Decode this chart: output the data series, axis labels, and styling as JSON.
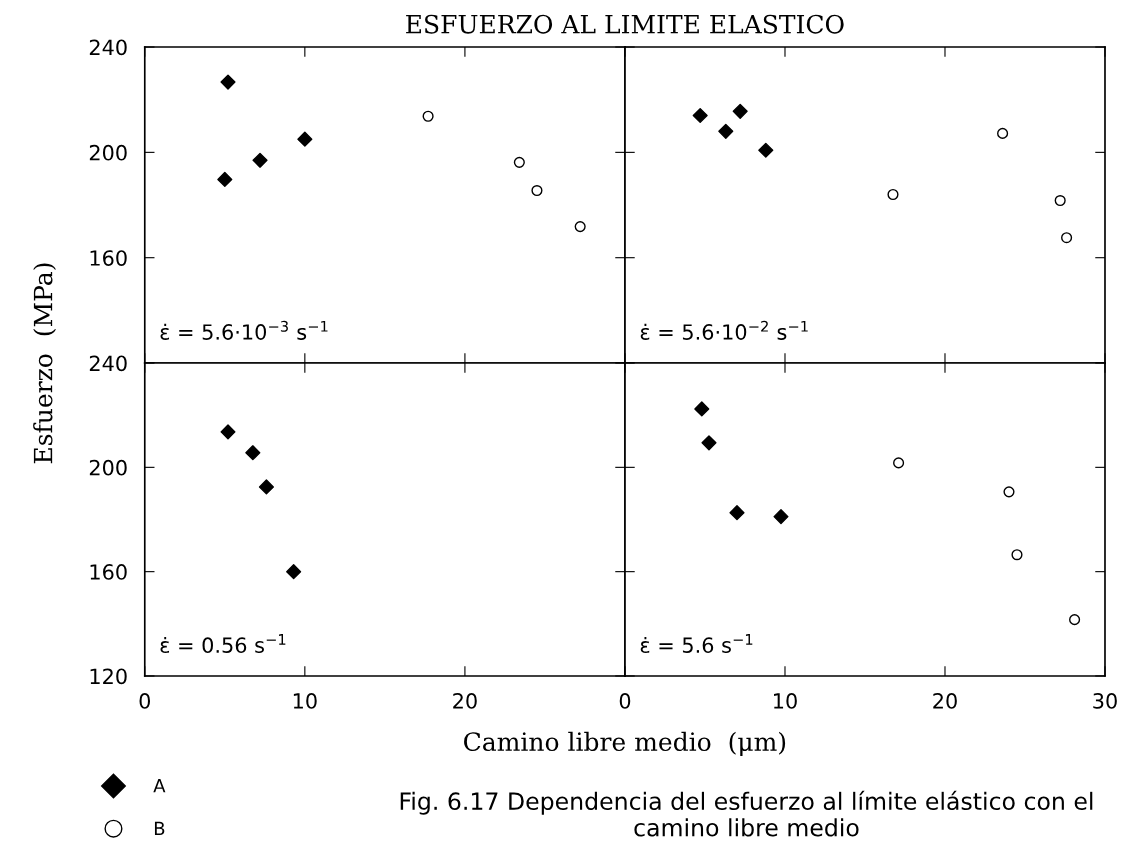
{
  "chart_data": [
    {
      "type": "scatter",
      "title": "ESFUERZO AL LIMITE ELASTICO",
      "ylabel": "Esfuerzo  (MPa)",
      "annotations": [
        "ε̇ = 5.6·10$^{−3}$ s$^{−1}$"
      ],
      "xlim": [
        0,
        30
      ],
      "ylim": [
        120,
        240
      ],
      "xticks": [
        0,
        10,
        20,
        30
      ],
      "yticks": [
        {
          "value": 120,
          "label": null
        },
        160,
        200,
        240
      ],
      "tick_labels": "y",
      "grid": false,
      "legend": "bottom left",
      "series": [
        {
          "name": "A",
          "color": "#000000",
          "marker": "diamond",
          "x": [
            5.2,
            5.0,
            7.2,
            10.0
          ],
          "values": [
            226.7,
            189.7,
            197,
            205
          ]
        },
        {
          "name": "B",
          "color": "#000000",
          "marker": "circle",
          "x": [
            17.7,
            23.4,
            24.5,
            27.2
          ],
          "values": [
            213.7,
            196.2,
            185.5,
            171.8
          ]
        }
      ]
    },
    {
      "type": "scatter",
      "annotations": [
        "ε̇ = 5.6·10$^{−2}$ s$^{−1}$"
      ],
      "xlim": [
        0,
        30
      ],
      "ylim": [
        120,
        240
      ],
      "xticks": [
        0,
        10,
        20,
        30
      ],
      "yticks": [
        120,
        160,
        200,
        240
      ],
      "tick_labels": false,
      "grid": false,
      "series": [
        {
          "color": "#000000",
          "marker": "diamond",
          "x": [
            4.7,
            6.3,
            7.2,
            8.8
          ],
          "values": [
            214,
            208,
            215.6,
            200.8
          ]
        },
        {
          "color": "#000000",
          "marker": "circle",
          "x": [
            16.75,
            23.6,
            27.2,
            27.6
          ],
          "values": [
            184,
            207.2,
            181.7,
            167.6
          ]
        }
      ]
    },
    {
      "type": "scatter",
      "xlabel": "Camino libre medio  (μm)",
      "annotations": [
        "ε̇ = 0.56 s$^{−1}$",
        "Fig. 6.17 Dependencia del esfuerzo al límite elástico con el camino libre medio"
      ],
      "xlim": [
        0,
        30
      ],
      "ylim": [
        120,
        240
      ],
      "xticks": [
        0,
        10,
        20,
        {
          "value": 30,
          "label": null
        }
      ],
      "yticks": [
        120,
        160,
        200,
        240
      ],
      "grid": false,
      "series": [
        {
          "color": "#000000",
          "marker": "diamond",
          "x": [
            5.2,
            6.75,
            7.6,
            9.3
          ],
          "values": [
            213.6,
            205.6,
            192.5,
            160
          ]
        }
      ]
    },
    {
      "type": "scatter",
      "annotations": [
        "ε̇ = 5.6 s$^{−1}$"
      ],
      "xlim": [
        0,
        30
      ],
      "ylim": [
        120,
        240
      ],
      "xticks": [
        0,
        10,
        20,
        30
      ],
      "yticks": [
        120,
        160,
        200,
        240
      ],
      "tick_labels": "x",
      "grid": false,
      "series": [
        {
          "color": "#000000",
          "marker": "diamond",
          "x": [
            4.8,
            5.25,
            7.0,
            9.75
          ],
          "values": [
            222.4,
            209.4,
            182.6,
            181.1
          ]
        },
        {
          "color": "#000000",
          "marker": "circle",
          "x": [
            17.1,
            24.0,
            24.5,
            28.1
          ],
          "values": [
            201.7,
            190.6,
            166.5,
            141.6
          ]
        }
      ]
    }
  ]
}
